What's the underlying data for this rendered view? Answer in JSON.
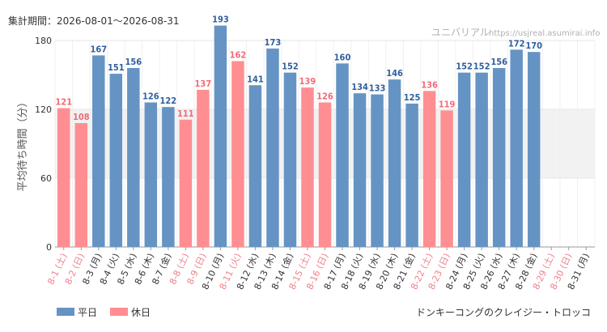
{
  "header": {
    "period_text": "集計期間：2026-08-01～2026-08-31",
    "brand": "ユニバリアル",
    "url": "https://usjreal.asumirai.info"
  },
  "attraction": "ドンキーコングのクレイジー・トロッコ",
  "legend": [
    {
      "label": "平日",
      "color": "#6594c4"
    },
    {
      "label": "休日",
      "color": "#ff8e92"
    }
  ],
  "colors": {
    "weekday": "#6594c4",
    "holiday": "#ff8e92",
    "weekday_label": "#333333",
    "holiday_label": "#f0808a",
    "value_weekday": "#2f5f9e",
    "value_holiday": "#f06a78",
    "band": "#f2f2f2",
    "grid": "#e6e6e6"
  },
  "chart_data": {
    "type": "bar",
    "ylabel": "平均待ち時間（分）",
    "ylim": [
      0,
      180
    ],
    "yticks": [
      0,
      60,
      120,
      180
    ],
    "highlight_band": [
      60,
      120
    ],
    "grid": true,
    "legend_position": "bottom-left",
    "categories": [
      "8-1 (土)",
      "8-2 (日)",
      "8-3 (月)",
      "8-4 (火)",
      "8-5 (水)",
      "8-6 (木)",
      "8-7 (金)",
      "8-8 (土)",
      "8-9 (日)",
      "8-10 (月)",
      "8-11 (火)",
      "8-12 (水)",
      "8-13 (木)",
      "8-14 (金)",
      "8-15 (土)",
      "8-16 (日)",
      "8-17 (月)",
      "8-18 (火)",
      "8-19 (水)",
      "8-20 (木)",
      "8-21 (金)",
      "8-22 (土)",
      "8-23 (日)",
      "8-24 (月)",
      "8-25 (火)",
      "8-26 (水)",
      "8-27 (木)",
      "8-28 (金)",
      "8-29 (土)",
      "8-30 (日)",
      "8-31 (月)"
    ],
    "values": [
      121,
      108,
      167,
      151,
      156,
      126,
      122,
      111,
      137,
      193,
      162,
      141,
      173,
      152,
      139,
      126,
      160,
      134,
      133,
      146,
      125,
      136,
      119,
      152,
      152,
      156,
      172,
      170,
      null,
      null,
      null
    ],
    "day_type": [
      "holiday",
      "holiday",
      "weekday",
      "weekday",
      "weekday",
      "weekday",
      "weekday",
      "holiday",
      "holiday",
      "weekday",
      "holiday",
      "weekday",
      "weekday",
      "weekday",
      "holiday",
      "holiday",
      "weekday",
      "weekday",
      "weekday",
      "weekday",
      "weekday",
      "holiday",
      "holiday",
      "weekday",
      "weekday",
      "weekday",
      "weekday",
      "weekday",
      "holiday",
      "holiday",
      "weekday"
    ]
  }
}
